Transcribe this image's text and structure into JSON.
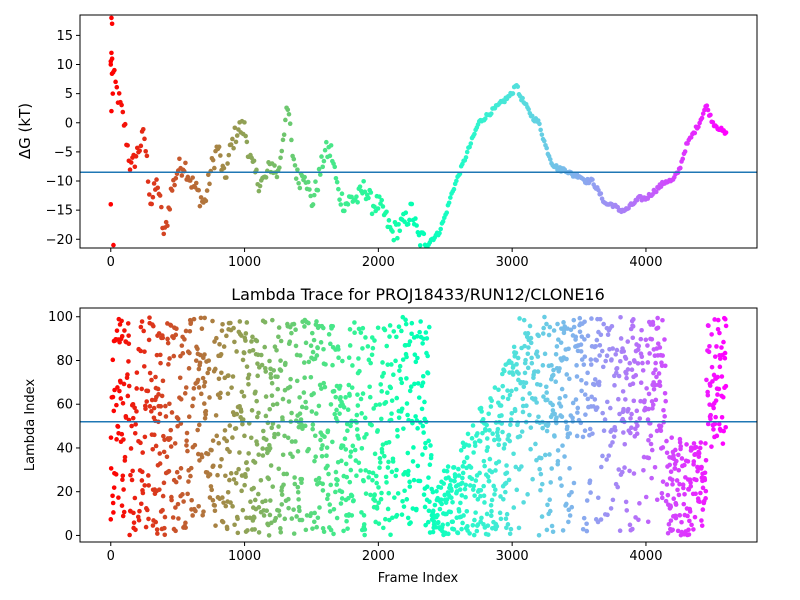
{
  "chart_data": [
    {
      "type": "scatter",
      "title": "",
      "xlabel": "",
      "ylabel": "ΔG (kT)",
      "xlim": [
        -230,
        4830
      ],
      "ylim": [
        -21.5,
        18.5
      ],
      "xticks": [
        0,
        1000,
        2000,
        3000,
        4000
      ],
      "xtick_labels": [
        "0",
        "1000",
        "2000",
        "3000",
        "4000"
      ],
      "yticks": [
        15,
        10,
        5,
        0,
        -5,
        -10,
        -15,
        -20
      ],
      "ytick_labels": [
        "15",
        "10",
        "5",
        "0",
        "−5",
        "−10",
        "−15",
        "−20"
      ],
      "color_scale": "rainbow",
      "color_direction": "red at frame 0 to violet at last frame",
      "hline": {
        "y": -8.5,
        "color": "#1f77b4"
      },
      "series": [
        {
          "n_frames": 4600,
          "x": [
            0,
            50,
            100,
            150,
            200,
            250,
            300,
            350,
            400,
            450,
            500,
            550,
            600,
            650,
            700,
            750,
            800,
            850,
            900,
            950,
            1000,
            1050,
            1100,
            1150,
            1200,
            1250,
            1300,
            1330,
            1350,
            1400,
            1450,
            1500,
            1550,
            1600,
            1650,
            1700,
            1750,
            1800,
            1850,
            1900,
            1950,
            2000,
            2050,
            2100,
            2150,
            2200,
            2250,
            2300,
            2350,
            2400,
            2450,
            2500,
            2550,
            2600,
            2650,
            2700,
            2750,
            2800,
            2850,
            2900,
            2950,
            3000,
            3030,
            3050,
            3100,
            3150,
            3200,
            3250,
            3300,
            3350,
            3400,
            3450,
            3500,
            3550,
            3600,
            3650,
            3700,
            3750,
            3800,
            3850,
            3900,
            3950,
            4000,
            4050,
            4100,
            4150,
            4200,
            4250,
            4300,
            4350,
            4400,
            4450,
            4500,
            4550,
            4600
          ],
          "y": [
            10,
            5,
            0,
            -8,
            -5,
            -2,
            -14,
            -10,
            -20,
            -12,
            -8,
            -7,
            -10,
            -12,
            -14,
            -8,
            -4,
            -10,
            -4,
            -1,
            -1,
            -7,
            -10,
            -10,
            -7,
            -9,
            0,
            2,
            -4,
            -10,
            -8,
            -14,
            -10,
            -5,
            -5,
            -12,
            -14,
            -13,
            -13,
            -11,
            -14,
            -14,
            -16,
            -19,
            -18,
            -17,
            -15,
            -20,
            -20,
            -20,
            -19,
            -16,
            -12,
            -9,
            -6,
            -3,
            0,
            1,
            2,
            3,
            4,
            5,
            7,
            5,
            3,
            1,
            0,
            -4,
            -7,
            -8,
            -8,
            -9,
            -9,
            -10,
            -10,
            -12,
            -14,
            -14,
            -15,
            -15,
            -14,
            -13,
            -13,
            -12,
            -11,
            -10,
            -10,
            -8,
            -4,
            -2,
            0,
            3,
            0,
            -1,
            -2
          ]
        }
      ]
    },
    {
      "type": "scatter",
      "title": "Lambda Trace for PROJ18433/RUN12/CLONE16",
      "xlabel": "Frame Index",
      "ylabel": "Lambda Index",
      "xlim": [
        -230,
        4830
      ],
      "ylim": [
        -3,
        104
      ],
      "xticks": [
        0,
        1000,
        2000,
        3000,
        4000
      ],
      "xtick_labels": [
        "0",
        "1000",
        "2000",
        "3000",
        "4000"
      ],
      "yticks": [
        0,
        20,
        40,
        60,
        80,
        100
      ],
      "ytick_labels": [
        "0",
        "20",
        "40",
        "60",
        "80",
        "100"
      ],
      "color_scale": "rainbow",
      "color_direction": "red at frame 0 to violet at last frame",
      "hline": {
        "y": 52,
        "color": "#1f77b4"
      },
      "series": [
        {
          "n_frames": 4600,
          "description": "lambda index sampled per frame over the full 0–100 range",
          "x_bands": [
            [
              0,
              2400
            ],
            [
              2400,
              3000
            ],
            [
              3000,
              4150
            ],
            [
              4150,
              4450
            ],
            [
              4450,
              4600
            ]
          ],
          "y_ranges": [
            [
              0,
              100
            ],
            [
              0,
              60
            ],
            [
              0,
              100
            ],
            [
              0,
              45
            ],
            [
              40,
              100
            ]
          ]
        }
      ]
    }
  ]
}
